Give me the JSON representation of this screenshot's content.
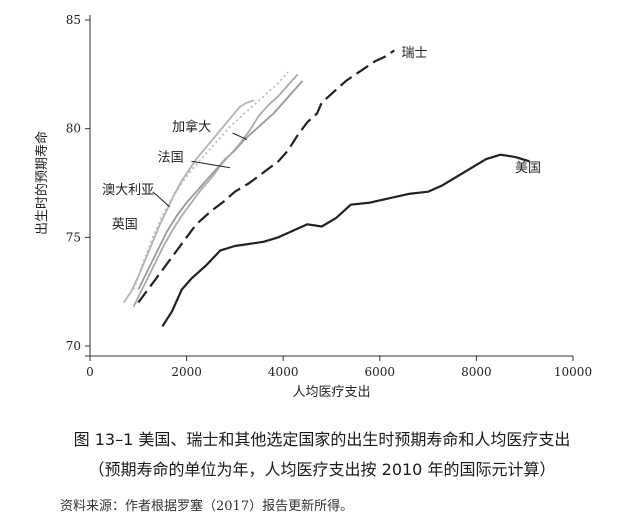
{
  "chart_data": {
    "type": "line",
    "xlabel": "人均医疗支出",
    "ylabel": "出生时的预期寿命",
    "xlim": [
      0,
      10000
    ],
    "ylim": [
      70,
      85
    ],
    "xticks": [
      0,
      2000,
      4000,
      6000,
      8000,
      10000
    ],
    "yticks": [
      70,
      75,
      80,
      85
    ],
    "grid": false,
    "series": [
      {
        "name": "瑞士",
        "color": "#222222",
        "style": "long-dash",
        "width": 2.2,
        "x": [
          1000,
          1200,
          1400,
          1600,
          1800,
          2000,
          2200,
          2500,
          2800,
          3000,
          3300,
          3600,
          3900,
          4100,
          4300,
          4500,
          4700,
          4800,
          5000,
          5200,
          5300,
          5500,
          5700,
          5900,
          6100,
          6300
        ],
        "y": [
          72.0,
          72.6,
          73.2,
          73.8,
          74.4,
          75.0,
          75.6,
          76.2,
          76.7,
          77.1,
          77.5,
          78.0,
          78.5,
          79.0,
          79.7,
          80.3,
          80.7,
          81.2,
          81.6,
          82.0,
          82.2,
          82.5,
          82.8,
          83.1,
          83.3,
          83.6
        ]
      },
      {
        "name": "美国",
        "color": "#222222",
        "style": "solid",
        "width": 2.2,
        "x": [
          1500,
          1700,
          1900,
          2100,
          2400,
          2700,
          3000,
          3300,
          3600,
          3900,
          4200,
          4500,
          4800,
          5100,
          5400,
          5800,
          6200,
          6600,
          7000,
          7300,
          7600,
          7900,
          8200,
          8500,
          8800,
          9100
        ],
        "y": [
          70.9,
          71.6,
          72.6,
          73.1,
          73.7,
          74.4,
          74.6,
          74.7,
          74.8,
          75.0,
          75.3,
          75.6,
          75.5,
          75.9,
          76.5,
          76.6,
          76.8,
          77.0,
          77.1,
          77.4,
          77.8,
          78.2,
          78.6,
          78.8,
          78.7,
          78.5
        ]
      },
      {
        "name": "加拿大",
        "color": "#999999",
        "style": "solid",
        "width": 1.8,
        "x": [
          1000,
          1200,
          1400,
          1600,
          1800,
          2000,
          2200,
          2400,
          2600,
          2800,
          3000,
          3200,
          3400,
          3600,
          3800,
          4000,
          4200,
          4400
        ],
        "y": [
          72.6,
          73.5,
          74.4,
          75.3,
          76.0,
          76.6,
          77.1,
          77.6,
          78.1,
          78.6,
          79.0,
          79.5,
          79.9,
          80.3,
          80.7,
          81.2,
          81.7,
          82.2
        ]
      },
      {
        "name": "法国",
        "color": "#aaaaaa",
        "style": "solid",
        "width": 1.8,
        "x": [
          900,
          1100,
          1300,
          1500,
          1700,
          1900,
          2100,
          2300,
          2500,
          2700,
          2900,
          3100,
          3300,
          3500,
          3700,
          3900,
          4100,
          4300
        ],
        "y": [
          71.8,
          72.7,
          73.6,
          74.5,
          75.3,
          76.0,
          76.6,
          77.2,
          77.7,
          78.3,
          78.8,
          79.3,
          79.9,
          80.6,
          81.1,
          81.5,
          82.0,
          82.5
        ]
      },
      {
        "name": "澳大利亚",
        "color": "#bbbbbb",
        "style": "dotted",
        "width": 1.8,
        "x": [
          900,
          1100,
          1300,
          1500,
          1700,
          1900,
          2100,
          2300,
          2500,
          2700,
          2900,
          3100,
          3300,
          3500,
          3700,
          3900,
          4100
        ],
        "y": [
          72.6,
          73.8,
          75.0,
          76.0,
          76.8,
          77.5,
          78.1,
          78.6,
          79.1,
          79.6,
          80.1,
          80.5,
          80.9,
          81.3,
          81.7,
          82.1,
          82.6
        ]
      },
      {
        "name": "英国",
        "color": "#b3b3b3",
        "style": "solid",
        "width": 1.8,
        "x": [
          700,
          850,
          1000,
          1150,
          1300,
          1450,
          1600,
          1750,
          1900,
          2050,
          2200,
          2350,
          2500,
          2650,
          2800,
          2950,
          3100,
          3250,
          3400
        ],
        "y": [
          72.0,
          72.5,
          73.2,
          74.0,
          74.8,
          75.6,
          76.3,
          77.0,
          77.6,
          78.1,
          78.6,
          79.0,
          79.4,
          79.8,
          80.2,
          80.6,
          81.0,
          81.2,
          81.3
        ]
      }
    ],
    "labels": [
      {
        "text": "瑞士",
        "x": 6450,
        "y": 83.3
      },
      {
        "text": "美国",
        "x": 8800,
        "y": 78.0
      },
      {
        "text": "加拿大",
        "x": 1700,
        "y": 79.9
      },
      {
        "text": "法国",
        "x": 1400,
        "y": 78.5
      },
      {
        "text": "澳大利亚",
        "x": 250,
        "y": 77.0
      },
      {
        "text": "英国",
        "x": 450,
        "y": 75.4
      }
    ],
    "leaders": [
      {
        "label": "加拿大",
        "x1": 2950,
        "y1": 79.8,
        "x2": 3250,
        "y2": 79.5
      },
      {
        "label": "法国",
        "x1": 2100,
        "y1": 78.5,
        "x2": 2900,
        "y2": 78.2
      },
      {
        "label": "澳大利亚",
        "x1": 1300,
        "y1": 77.1,
        "x2": 1650,
        "y2": 76.4
      }
    ]
  },
  "caption": {
    "line1": "图 13–1    美国、瑞士和其他选定国家的出生时预期寿命和人均医疗支出",
    "line2": "（预期寿命的单位为年，人均医疗支出按 2010 年的国际元计算）"
  },
  "source": "资料来源：作者根据罗塞（2017）报告更新所得。"
}
